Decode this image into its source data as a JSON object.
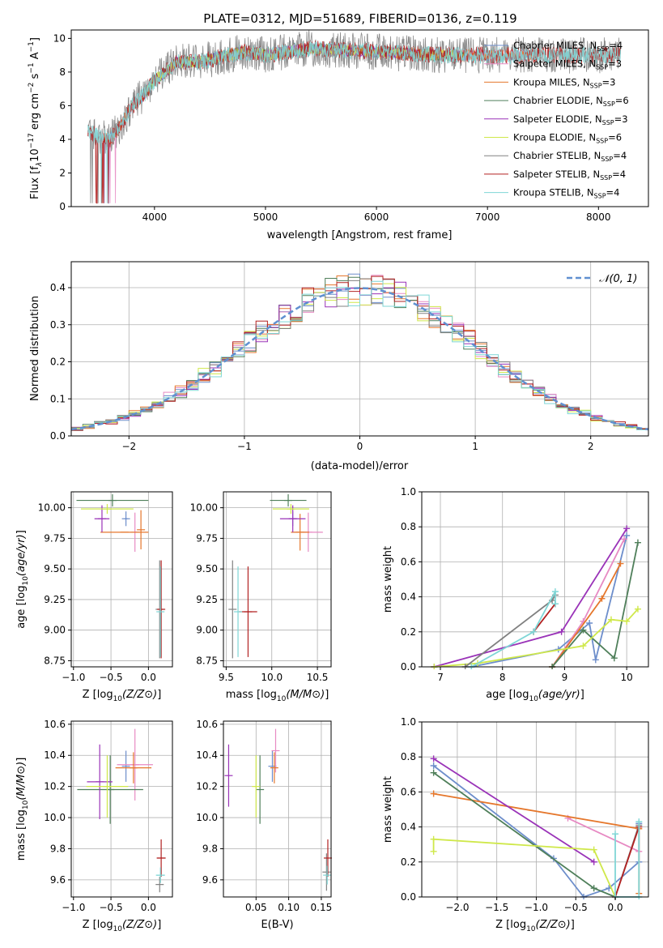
{
  "figure_title": "PLATE=0312, MJD=51689, FIBERID=0136, z=0.119",
  "colors": {
    "Chabrier MILES": "#6d8ecb",
    "Salpeter MILES": "#e78ac3",
    "Kroupa MILES": "#e5772c",
    "Chabrier ELODIE": "#4f7f5a",
    "Salpeter ELODIE": "#9a33b8",
    "Kroupa ELODIE": "#cfe84a",
    "Chabrier STELIB": "#808080",
    "Salpeter STELIB": "#b22222",
    "Kroupa STELIB": "#7fd6d6",
    "normal": "#6090d0"
  },
  "chart_data": [
    {
      "type": "line",
      "title": "PLATE=0312, MJD=51689, FIBERID=0136, z=0.119",
      "xlabel": "wavelength [Angstrom, rest frame]",
      "ylabel_parts": [
        "Flux [f",
        "λ",
        "10",
        "−17",
        " erg cm",
        "−2",
        " s",
        "−1",
        " A",
        "−1",
        "]"
      ],
      "xlim": [
        3250,
        8450
      ],
      "ylim": [
        0,
        10.5
      ],
      "xticks": [
        4000,
        5000,
        6000,
        7000,
        8000
      ],
      "yticks": [
        0,
        2,
        4,
        6,
        8,
        10
      ],
      "legend": [
        {
          "name": "Chabrier MILES",
          "n": "4"
        },
        {
          "name": "Salpeter MILES",
          "n": "3"
        },
        {
          "name": "Kroupa MILES",
          "n": "3"
        },
        {
          "name": "Chabrier ELODIE",
          "n": "6"
        },
        {
          "name": "Salpeter ELODIE",
          "n": "3"
        },
        {
          "name": "Kroupa ELODIE",
          "n": "6"
        },
        {
          "name": "Chabrier STELIB",
          "n": "4"
        },
        {
          "name": "Salpeter STELIB",
          "n": "4"
        },
        {
          "name": "Kroupa STELIB",
          "n": "4"
        }
      ],
      "legend_placement": "upper right",
      "series_ranges": [
        {
          "name": "Chabrier MILES",
          "x": [
            3540,
            7400
          ]
        },
        {
          "name": "Salpeter MILES",
          "x": [
            3540,
            7400
          ]
        },
        {
          "name": "Kroupa MILES",
          "x": [
            3540,
            7400
          ]
        },
        {
          "name": "Chabrier ELODIE",
          "x": [
            3900,
            6800
          ]
        },
        {
          "name": "Salpeter ELODIE",
          "x": [
            3900,
            6800
          ]
        },
        {
          "name": "Kroupa ELODIE",
          "x": [
            3900,
            6800
          ]
        },
        {
          "name": "Chabrier STELIB",
          "x": [
            3400,
            8200
          ]
        },
        {
          "name": "Salpeter STELIB",
          "x": [
            3400,
            8200
          ]
        },
        {
          "name": "Kroupa STELIB",
          "x": [
            3400,
            8200
          ]
        }
      ],
      "continuum": {
        "x": [
          3400,
          3500,
          3600,
          3700,
          3800,
          3900,
          4000,
          4100,
          4200,
          4400,
          4600,
          4800,
          5000,
          5400,
          6000,
          6600,
          7000,
          7500,
          8000,
          8200
        ],
        "y": [
          4.5,
          4.2,
          4.0,
          4.9,
          6.0,
          6.6,
          7.5,
          8.0,
          8.6,
          8.6,
          8.9,
          9.2,
          9.0,
          9.4,
          9.2,
          9.0,
          9.0,
          9.0,
          9.0,
          9.0
        ]
      }
    },
    {
      "type": "line",
      "xlabel": "(data-model)/error",
      "ylabel": "Normed distribution",
      "xlim": [
        -2.5,
        2.5
      ],
      "ylim": [
        0,
        0.47
      ],
      "xticks": [
        -2,
        -1,
        0,
        1,
        2
      ],
      "yticks": [
        0.0,
        0.1,
        0.2,
        0.3,
        0.4
      ],
      "grid": true,
      "legend_label": "N(0,1)",
      "legend_placement": "upper right",
      "bin_width": 0.1,
      "gaussian": {
        "mean": 0,
        "sigma": 1
      }
    },
    {
      "type": "scatter",
      "xlabel": "Z [log10(Z/Z⊙)]",
      "ylabel": "age  [log10(age/yr)]",
      "xlim": [
        -1.03,
        0.32
      ],
      "ylim": [
        8.7,
        10.13
      ],
      "xticks": [
        -1.0,
        -0.5,
        0.0
      ],
      "yticks": [
        8.75,
        9.0,
        9.25,
        9.5,
        9.75,
        10.0
      ],
      "points": [
        {
          "name": "Chabrier MILES",
          "x": -0.3,
          "xerr": 0.02,
          "y": 9.91,
          "yerr": 0.06
        },
        {
          "name": "Salpeter MILES",
          "x": -0.18,
          "xerr": 0.0,
          "y": 9.8,
          "yerr": 0.16
        },
        {
          "name": "Kroupa MILES",
          "x": -0.32,
          "xerr": 0.32,
          "y": 9.8,
          "yerr": 0.0
        },
        {
          "name": "Chabrier ELODIE",
          "x": -0.48,
          "xerr": 0.48,
          "y": 10.06,
          "yerr": 0.05
        },
        {
          "name": "Salpeter ELODIE",
          "x": -0.62,
          "xerr": 0.1,
          "y": 9.91,
          "yerr": 0.11
        },
        {
          "name": "Kroupa ELODIE",
          "x": -0.55,
          "xerr": 0.35,
          "y": 9.99,
          "yerr": 0.04
        },
        {
          "name": "Chabrier STELIB",
          "x": 0.15,
          "xerr": 0.0,
          "y": 9.17,
          "yerr": 0.4
        },
        {
          "name": "Salpeter STELIB",
          "x": 0.17,
          "xerr": 0.0,
          "y": 9.17,
          "yerr": 0.4
        },
        {
          "name": "Kroupa STELIB",
          "x": 0.16,
          "xerr": 0.0,
          "y": 9.15,
          "yerr": 0.37
        },
        {
          "name": "Kroupa MILES",
          "x": -0.1,
          "xerr": 0.0,
          "y": 9.82,
          "yerr": 0.16
        }
      ]
    },
    {
      "type": "scatter",
      "xlabel": "mass [log10(M/M⊙)]",
      "ylabel": "",
      "xlim": [
        9.47,
        10.65
      ],
      "ylim": [
        8.7,
        10.13
      ],
      "xticks": [
        9.5,
        10.0,
        10.5
      ],
      "yticks": [
        8.75,
        9.0,
        9.25,
        9.5,
        9.75,
        10.0
      ],
      "points": [
        {
          "name": "Chabrier MILES",
          "x": 10.23,
          "xerr": 0.02,
          "y": 9.91,
          "yerr": 0.06
        },
        {
          "name": "Salpeter MILES",
          "x": 10.4,
          "xerr": 0.16,
          "y": 9.8,
          "yerr": 0.16
        },
        {
          "name": "Kroupa MILES",
          "x": 10.31,
          "xerr": 0.1,
          "y": 9.8,
          "yerr": 0.15
        },
        {
          "name": "Chabrier ELODIE",
          "x": 10.18,
          "xerr": 0.2,
          "y": 10.06,
          "yerr": 0.05
        },
        {
          "name": "Salpeter ELODIE",
          "x": 10.23,
          "xerr": 0.14,
          "y": 9.91,
          "yerr": 0.11
        },
        {
          "name": "Kroupa ELODIE",
          "x": 10.21,
          "xerr": 0.2,
          "y": 9.99,
          "yerr": 0.04
        },
        {
          "name": "Chabrier STELIB",
          "x": 9.57,
          "xerr": 0.0,
          "y": 9.17,
          "yerr": 0.4
        },
        {
          "name": "Salpeter STELIB",
          "x": 9.74,
          "xerr": 0.1,
          "y": 9.15,
          "yerr": 0.37
        },
        {
          "name": "Kroupa STELIB",
          "x": 9.63,
          "xerr": 0.0,
          "y": 9.15,
          "yerr": 0.37
        }
      ]
    },
    {
      "type": "line",
      "xlabel": "age  [log10(age/yr)]",
      "ylabel": "mass weight",
      "xlim": [
        6.7,
        10.35
      ],
      "ylim": [
        0,
        1.0
      ],
      "xticks": [
        7,
        8,
        9,
        10
      ],
      "yticks": [
        0.0,
        0.2,
        0.4,
        0.6,
        0.8,
        1.0
      ],
      "grid": true,
      "series": [
        {
          "name": "Chabrier MILES",
          "x": [
            7.5,
            8.9,
            9.4,
            9.5,
            10.0
          ],
          "y": [
            0.0,
            0.1,
            0.25,
            0.04,
            0.75
          ]
        },
        {
          "name": "Salpeter MILES",
          "x": [
            8.8,
            9.3,
            9.96
          ],
          "y": [
            0.0,
            0.26,
            0.73
          ]
        },
        {
          "name": "Kroupa MILES",
          "x": [
            8.8,
            9.6,
            9.9
          ],
          "y": [
            0.0,
            0.39,
            0.59
          ]
        },
        {
          "name": "Chabrier ELODIE",
          "x": [
            8.8,
            9.3,
            9.8,
            10.18
          ],
          "y": [
            0.0,
            0.21,
            0.05,
            0.71
          ]
        },
        {
          "name": "Salpeter ELODIE",
          "x": [
            6.9,
            8.95,
            10.0
          ],
          "y": [
            0.0,
            0.2,
            0.79
          ]
        },
        {
          "name": "Kroupa ELODIE",
          "x": [
            6.9,
            7.6,
            9.3,
            9.75,
            10.0,
            10.18
          ],
          "y": [
            0.0,
            0.02,
            0.12,
            0.27,
            0.26,
            0.33
          ]
        },
        {
          "name": "Chabrier STELIB",
          "x": [
            7.4,
            8.8,
            8.85
          ],
          "y": [
            0.0,
            0.38,
            0.41
          ]
        },
        {
          "name": "Salpeter STELIB",
          "x": [
            8.5,
            8.85
          ],
          "y": [
            0.2,
            0.36
          ]
        },
        {
          "name": "Kroupa STELIB",
          "x": [
            7.5,
            8.5,
            8.85,
            8.85
          ],
          "y": [
            0.0,
            0.2,
            0.43,
            0.36
          ]
        }
      ]
    },
    {
      "type": "scatter",
      "xlabel": "Z [log10(Z/Z⊙)]",
      "ylabel": "mass [log10(M/M⊙)]",
      "xlim": [
        -1.03,
        0.32
      ],
      "ylim": [
        9.49,
        10.62
      ],
      "xticks": [
        -1.0,
        -0.5,
        0.0
      ],
      "yticks": [
        9.6,
        9.8,
        10.0,
        10.2,
        10.4,
        10.6
      ],
      "points": [
        {
          "name": "Chabrier MILES",
          "x": -0.3,
          "xerr": 0.0,
          "y": 10.33,
          "yerr": 0.1
        },
        {
          "name": "Salpeter MILES",
          "x": -0.18,
          "xerr": 0.24,
          "y": 10.34,
          "yerr": 0.23
        },
        {
          "name": "Kroupa MILES",
          "x": -0.2,
          "xerr": 0.24,
          "y": 10.32,
          "yerr": 0.1
        },
        {
          "name": "Chabrier ELODIE",
          "x": -0.51,
          "xerr": 0.44,
          "y": 10.18,
          "yerr": 0.22
        },
        {
          "name": "Salpeter ELODIE",
          "x": -0.65,
          "xerr": 0.17,
          "y": 10.23,
          "yerr": 0.24
        },
        {
          "name": "Kroupa ELODIE",
          "x": -0.55,
          "xerr": 0.28,
          "y": 10.2,
          "yerr": 0.2
        },
        {
          "name": "Chabrier STELIB",
          "x": 0.15,
          "xerr": 0.0,
          "y": 9.57,
          "yerr": 0.05
        },
        {
          "name": "Salpeter STELIB",
          "x": 0.17,
          "xerr": 0.06,
          "y": 9.74,
          "yerr": 0.12
        },
        {
          "name": "Kroupa STELIB",
          "x": 0.16,
          "xerr": 0.06,
          "y": 9.63,
          "yerr": 0.05
        }
      ]
    },
    {
      "type": "scatter",
      "xlabel": "E(B-V)",
      "ylabel": "",
      "xlim": [
        0.0,
        0.165
      ],
      "ylim": [
        9.49,
        10.62
      ],
      "xticks": [
        0.05,
        0.1,
        0.15
      ],
      "yticks": [
        9.6,
        9.8,
        10.0,
        10.2,
        10.4,
        10.6
      ],
      "points": [
        {
          "name": "Chabrier MILES",
          "x": 0.075,
          "xerr": 0.0,
          "y": 10.33,
          "yerr": 0.1
        },
        {
          "name": "Salpeter MILES",
          "x": 0.08,
          "xerr": 0.0,
          "y": 10.43,
          "yerr": 0.14
        },
        {
          "name": "Kroupa MILES",
          "x": 0.078,
          "xerr": 0.0,
          "y": 10.32,
          "yerr": 0.1
        },
        {
          "name": "Chabrier ELODIE",
          "x": 0.056,
          "xerr": 0.0,
          "y": 10.18,
          "yerr": 0.22
        },
        {
          "name": "Salpeter ELODIE",
          "x": 0.008,
          "xerr": 0.0,
          "y": 10.27,
          "yerr": 0.2
        },
        {
          "name": "Kroupa ELODIE",
          "x": 0.05,
          "xerr": 0.0,
          "y": 10.2,
          "yerr": 0.2
        },
        {
          "name": "Chabrier STELIB",
          "x": 0.158,
          "xerr": 0.0,
          "y": 9.65,
          "yerr": 0.12
        },
        {
          "name": "Salpeter STELIB",
          "x": 0.16,
          "xerr": 0.0,
          "y": 9.74,
          "yerr": 0.12
        },
        {
          "name": "Kroupa STELIB",
          "x": 0.159,
          "xerr": 0.0,
          "y": 9.63,
          "yerr": 0.06
        }
      ]
    },
    {
      "type": "line",
      "xlabel": "Z [log10(Z/Z⊙)]",
      "ylabel": "mass weight",
      "xlim": [
        -2.45,
        0.42
      ],
      "ylim": [
        0,
        1.0
      ],
      "xticks": [
        -2.0,
        -1.5,
        -1.0,
        -0.5,
        0.0
      ],
      "yticks": [
        0.0,
        0.2,
        0.4,
        0.6,
        0.8,
        1.0
      ],
      "grid": true,
      "series": [
        {
          "name": "Chabrier MILES",
          "x": [
            -2.3,
            -0.78,
            -0.4,
            -0.08,
            0.3,
            0.3
          ],
          "y": [
            0.75,
            0.22,
            0.0,
            0.05,
            0.2,
            0.42
          ]
        },
        {
          "name": "Salpeter MILES",
          "x": [
            -0.6,
            0.3
          ],
          "y": [
            0.45,
            0.26
          ]
        },
        {
          "name": "Kroupa MILES",
          "x": [
            -2.3,
            0.3,
            0.3
          ],
          "y": [
            0.59,
            0.39,
            0.02
          ]
        },
        {
          "name": "Chabrier ELODIE",
          "x": [
            -2.3,
            -0.27,
            0.0
          ],
          "y": [
            0.71,
            0.05,
            0.0
          ]
        },
        {
          "name": "Salpeter ELODIE",
          "x": [
            -2.3,
            -0.27
          ],
          "y": [
            0.79,
            0.2
          ]
        },
        {
          "name": "Kroupa ELODIE",
          "x": [
            -2.3,
            -2.3,
            -0.27,
            0.0
          ],
          "y": [
            0.26,
            0.33,
            0.27,
            0.0
          ]
        },
        {
          "name": "Chabrier STELIB",
          "x": [
            0.0,
            0.3
          ],
          "y": [
            0.0,
            0.41
          ]
        },
        {
          "name": "Salpeter STELIB",
          "x": [
            0.0,
            0.3
          ],
          "y": [
            0.0,
            0.4
          ]
        },
        {
          "name": "Kroupa STELIB",
          "x": [
            0.0,
            0.0,
            0.3,
            0.3
          ],
          "y": [
            0.36,
            0.0,
            0.0,
            0.43
          ]
        }
      ]
    }
  ]
}
